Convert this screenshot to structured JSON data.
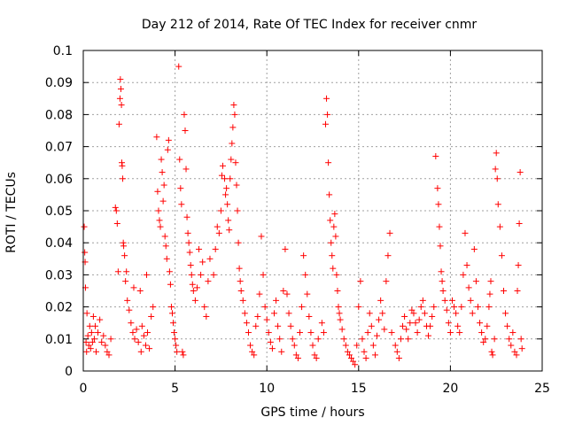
{
  "chart_data": {
    "type": "scatter",
    "title": "Day 212 of 2014, Rate Of TEC Index for receiver cnmr",
    "xlabel": "GPS time / hours",
    "ylabel": "ROTI / TECUs",
    "xlim": [
      0,
      25
    ],
    "ylim": [
      0,
      0.1
    ],
    "xticks": [
      0,
      5,
      10,
      15,
      20,
      25
    ],
    "xtick_labels": [
      "0",
      "5",
      "10",
      "15",
      "20",
      "25"
    ],
    "yticks": [
      0,
      0.01,
      0.02,
      0.03,
      0.04,
      0.05,
      0.06,
      0.07,
      0.08,
      0.09,
      0.1
    ],
    "ytick_labels": [
      "0",
      "0.01",
      "0.02",
      "0.03",
      "0.04",
      "0.05",
      "0.06",
      "0.07",
      "0.08",
      "0.09",
      "0.1"
    ],
    "grid": true,
    "marker": "+",
    "color": "#ff0000",
    "series": [
      {
        "name": "ROTI",
        "points": [
          [
            0.05,
            0.045
          ],
          [
            0.08,
            0.037
          ],
          [
            0.1,
            0.034
          ],
          [
            0.12,
            0.026
          ],
          [
            0.15,
            0.009
          ],
          [
            0.18,
            0.006
          ],
          [
            0.2,
            0.018
          ],
          [
            0.25,
            0.011
          ],
          [
            0.3,
            0.008
          ],
          [
            0.35,
            0.014
          ],
          [
            0.4,
            0.007
          ],
          [
            0.45,
            0.012
          ],
          [
            0.5,
            0.009
          ],
          [
            0.55,
            0.017
          ],
          [
            0.6,
            0.01
          ],
          [
            0.65,
            0.014
          ],
          [
            0.7,
            0.006
          ],
          [
            0.8,
            0.012
          ],
          [
            0.9,
            0.016
          ],
          [
            1.0,
            0.009
          ],
          [
            1.1,
            0.011
          ],
          [
            1.2,
            0.008
          ],
          [
            1.3,
            0.006
          ],
          [
            1.4,
            0.005
          ],
          [
            1.5,
            0.01
          ],
          [
            1.75,
            0.051
          ],
          [
            1.8,
            0.05
          ],
          [
            1.85,
            0.046
          ],
          [
            1.9,
            0.031
          ],
          [
            1.95,
            0.077
          ],
          [
            2.0,
            0.085
          ],
          [
            2.02,
            0.091
          ],
          [
            2.05,
            0.088
          ],
          [
            2.08,
            0.083
          ],
          [
            2.1,
            0.065
          ],
          [
            2.12,
            0.064
          ],
          [
            2.15,
            0.06
          ],
          [
            2.18,
            0.04
          ],
          [
            2.2,
            0.039
          ],
          [
            2.25,
            0.036
          ],
          [
            2.3,
            0.028
          ],
          [
            2.35,
            0.031
          ],
          [
            2.4,
            0.022
          ],
          [
            2.5,
            0.019
          ],
          [
            2.6,
            0.015
          ],
          [
            2.7,
            0.012
          ],
          [
            2.75,
            0.026
          ],
          [
            2.8,
            0.01
          ],
          [
            2.9,
            0.013
          ],
          [
            3.0,
            0.009
          ],
          [
            3.1,
            0.025
          ],
          [
            3.15,
            0.006
          ],
          [
            3.2,
            0.014
          ],
          [
            3.3,
            0.011
          ],
          [
            3.4,
            0.008
          ],
          [
            3.45,
            0.03
          ],
          [
            3.5,
            0.012
          ],
          [
            3.6,
            0.007
          ],
          [
            3.7,
            0.017
          ],
          [
            3.8,
            0.02
          ],
          [
            4.0,
            0.073
          ],
          [
            4.05,
            0.056
          ],
          [
            4.1,
            0.05
          ],
          [
            4.15,
            0.047
          ],
          [
            4.2,
            0.045
          ],
          [
            4.25,
            0.066
          ],
          [
            4.3,
            0.062
          ],
          [
            4.35,
            0.053
          ],
          [
            4.4,
            0.058
          ],
          [
            4.45,
            0.042
          ],
          [
            4.5,
            0.039
          ],
          [
            4.55,
            0.035
          ],
          [
            4.6,
            0.069
          ],
          [
            4.65,
            0.072
          ],
          [
            4.7,
            0.031
          ],
          [
            4.75,
            0.027
          ],
          [
            4.8,
            0.02
          ],
          [
            4.85,
            0.018
          ],
          [
            4.9,
            0.015
          ],
          [
            4.95,
            0.012
          ],
          [
            5.0,
            0.01
          ],
          [
            5.05,
            0.008
          ],
          [
            5.1,
            0.006
          ],
          [
            5.2,
            0.095
          ],
          [
            5.25,
            0.066
          ],
          [
            5.3,
            0.057
          ],
          [
            5.35,
            0.052
          ],
          [
            5.4,
            0.006
          ],
          [
            5.45,
            0.005
          ],
          [
            5.5,
            0.08
          ],
          [
            5.55,
            0.075
          ],
          [
            5.6,
            0.063
          ],
          [
            5.65,
            0.048
          ],
          [
            5.7,
            0.043
          ],
          [
            5.75,
            0.04
          ],
          [
            5.8,
            0.037
          ],
          [
            5.85,
            0.033
          ],
          [
            5.9,
            0.03
          ],
          [
            5.95,
            0.027
          ],
          [
            6.0,
            0.025
          ],
          [
            6.1,
            0.022
          ],
          [
            6.2,
            0.026
          ],
          [
            6.3,
            0.038
          ],
          [
            6.4,
            0.03
          ],
          [
            6.5,
            0.034
          ],
          [
            6.6,
            0.02
          ],
          [
            6.7,
            0.017
          ],
          [
            6.8,
            0.028
          ],
          [
            6.9,
            0.035
          ],
          [
            7.1,
            0.03
          ],
          [
            7.2,
            0.038
          ],
          [
            7.3,
            0.045
          ],
          [
            7.4,
            0.043
          ],
          [
            7.5,
            0.05
          ],
          [
            7.55,
            0.061
          ],
          [
            7.6,
            0.064
          ],
          [
            7.7,
            0.06
          ],
          [
            7.75,
            0.055
          ],
          [
            7.8,
            0.057
          ],
          [
            7.85,
            0.052
          ],
          [
            7.9,
            0.047
          ],
          [
            7.95,
            0.044
          ],
          [
            8.0,
            0.06
          ],
          [
            8.05,
            0.066
          ],
          [
            8.1,
            0.071
          ],
          [
            8.15,
            0.076
          ],
          [
            8.2,
            0.083
          ],
          [
            8.25,
            0.08
          ],
          [
            8.3,
            0.065
          ],
          [
            8.35,
            0.058
          ],
          [
            8.4,
            0.05
          ],
          [
            8.45,
            0.04
          ],
          [
            8.5,
            0.032
          ],
          [
            8.55,
            0.028
          ],
          [
            8.6,
            0.025
          ],
          [
            8.7,
            0.022
          ],
          [
            8.8,
            0.018
          ],
          [
            8.9,
            0.015
          ],
          [
            9.0,
            0.012
          ],
          [
            9.1,
            0.008
          ],
          [
            9.2,
            0.006
          ],
          [
            9.3,
            0.005
          ],
          [
            9.4,
            0.014
          ],
          [
            9.5,
            0.017
          ],
          [
            9.6,
            0.024
          ],
          [
            9.7,
            0.042
          ],
          [
            9.8,
            0.03
          ],
          [
            9.9,
            0.02
          ],
          [
            10.0,
            0.016
          ],
          [
            10.1,
            0.012
          ],
          [
            10.2,
            0.009
          ],
          [
            10.3,
            0.007
          ],
          [
            10.4,
            0.018
          ],
          [
            10.5,
            0.022
          ],
          [
            10.6,
            0.014
          ],
          [
            10.7,
            0.01
          ],
          [
            10.8,
            0.006
          ],
          [
            10.9,
            0.025
          ],
          [
            11.0,
            0.038
          ],
          [
            11.1,
            0.024
          ],
          [
            11.2,
            0.018
          ],
          [
            11.3,
            0.014
          ],
          [
            11.4,
            0.01
          ],
          [
            11.5,
            0.008
          ],
          [
            11.6,
            0.005
          ],
          [
            11.7,
            0.004
          ],
          [
            11.8,
            0.012
          ],
          [
            11.9,
            0.02
          ],
          [
            12.0,
            0.036
          ],
          [
            12.1,
            0.03
          ],
          [
            12.2,
            0.024
          ],
          [
            12.3,
            0.017
          ],
          [
            12.4,
            0.012
          ],
          [
            12.5,
            0.008
          ],
          [
            12.6,
            0.005
          ],
          [
            12.7,
            0.004
          ],
          [
            12.8,
            0.01
          ],
          [
            13.0,
            0.015
          ],
          [
            13.1,
            0.012
          ],
          [
            13.2,
            0.077
          ],
          [
            13.25,
            0.085
          ],
          [
            13.3,
            0.08
          ],
          [
            13.35,
            0.065
          ],
          [
            13.4,
            0.055
          ],
          [
            13.45,
            0.047
          ],
          [
            13.5,
            0.04
          ],
          [
            13.55,
            0.036
          ],
          [
            13.6,
            0.032
          ],
          [
            13.65,
            0.045
          ],
          [
            13.7,
            0.049
          ],
          [
            13.75,
            0.042
          ],
          [
            13.8,
            0.03
          ],
          [
            13.85,
            0.025
          ],
          [
            13.9,
            0.02
          ],
          [
            13.95,
            0.018
          ],
          [
            14.0,
            0.016
          ],
          [
            14.1,
            0.013
          ],
          [
            14.2,
            0.01
          ],
          [
            14.3,
            0.008
          ],
          [
            14.4,
            0.006
          ],
          [
            14.5,
            0.005
          ],
          [
            14.6,
            0.004
          ],
          [
            14.7,
            0.003
          ],
          [
            14.8,
            0.002
          ],
          [
            14.9,
            0.008
          ],
          [
            15.0,
            0.02
          ],
          [
            15.1,
            0.028
          ],
          [
            15.2,
            0.01
          ],
          [
            15.3,
            0.006
          ],
          [
            15.4,
            0.004
          ],
          [
            15.5,
            0.012
          ],
          [
            15.6,
            0.018
          ],
          [
            15.7,
            0.014
          ],
          [
            15.8,
            0.008
          ],
          [
            15.9,
            0.005
          ],
          [
            16.0,
            0.011
          ],
          [
            16.1,
            0.016
          ],
          [
            16.2,
            0.022
          ],
          [
            16.3,
            0.018
          ],
          [
            16.4,
            0.013
          ],
          [
            16.5,
            0.028
          ],
          [
            16.6,
            0.036
          ],
          [
            16.7,
            0.043
          ],
          [
            16.8,
            0.012
          ],
          [
            17.0,
            0.008
          ],
          [
            17.1,
            0.006
          ],
          [
            17.2,
            0.004
          ],
          [
            17.3,
            0.01
          ],
          [
            17.4,
            0.014
          ],
          [
            17.5,
            0.017
          ],
          [
            17.6,
            0.013
          ],
          [
            17.7,
            0.01
          ],
          [
            17.8,
            0.015
          ],
          [
            17.9,
            0.019
          ],
          [
            18.0,
            0.018
          ],
          [
            18.1,
            0.015
          ],
          [
            18.2,
            0.012
          ],
          [
            18.3,
            0.016
          ],
          [
            18.4,
            0.02
          ],
          [
            18.5,
            0.022
          ],
          [
            18.6,
            0.018
          ],
          [
            18.7,
            0.014
          ],
          [
            18.8,
            0.011
          ],
          [
            18.9,
            0.014
          ],
          [
            19.0,
            0.017
          ],
          [
            19.1,
            0.02
          ],
          [
            19.2,
            0.067
          ],
          [
            19.3,
            0.057
          ],
          [
            19.35,
            0.052
          ],
          [
            19.4,
            0.045
          ],
          [
            19.45,
            0.039
          ],
          [
            19.5,
            0.031
          ],
          [
            19.55,
            0.028
          ],
          [
            19.6,
            0.025
          ],
          [
            19.7,
            0.022
          ],
          [
            19.8,
            0.019
          ],
          [
            19.9,
            0.015
          ],
          [
            20.0,
            0.012
          ],
          [
            20.1,
            0.022
          ],
          [
            20.2,
            0.02
          ],
          [
            20.3,
            0.018
          ],
          [
            20.4,
            0.014
          ],
          [
            20.5,
            0.012
          ],
          [
            20.6,
            0.02
          ],
          [
            20.7,
            0.03
          ],
          [
            20.8,
            0.043
          ],
          [
            20.9,
            0.033
          ],
          [
            21.0,
            0.026
          ],
          [
            21.1,
            0.022
          ],
          [
            21.2,
            0.018
          ],
          [
            21.3,
            0.038
          ],
          [
            21.4,
            0.028
          ],
          [
            21.5,
            0.02
          ],
          [
            21.6,
            0.015
          ],
          [
            21.7,
            0.012
          ],
          [
            21.8,
            0.009
          ],
          [
            21.9,
            0.01
          ],
          [
            22.0,
            0.014
          ],
          [
            22.1,
            0.02
          ],
          [
            22.15,
            0.024
          ],
          [
            22.2,
            0.028
          ],
          [
            22.25,
            0.006
          ],
          [
            22.3,
            0.005
          ],
          [
            22.4,
            0.01
          ],
          [
            22.45,
            0.063
          ],
          [
            22.5,
            0.068
          ],
          [
            22.55,
            0.06
          ],
          [
            22.6,
            0.052
          ],
          [
            22.7,
            0.045
          ],
          [
            22.8,
            0.036
          ],
          [
            22.9,
            0.025
          ],
          [
            23.0,
            0.018
          ],
          [
            23.1,
            0.014
          ],
          [
            23.2,
            0.01
          ],
          [
            23.3,
            0.008
          ],
          [
            23.4,
            0.012
          ],
          [
            23.5,
            0.006
          ],
          [
            23.6,
            0.005
          ],
          [
            23.65,
            0.025
          ],
          [
            23.7,
            0.033
          ],
          [
            23.75,
            0.046
          ],
          [
            23.8,
            0.062
          ],
          [
            23.85,
            0.01
          ],
          [
            23.9,
            0.007
          ]
        ]
      }
    ]
  }
}
